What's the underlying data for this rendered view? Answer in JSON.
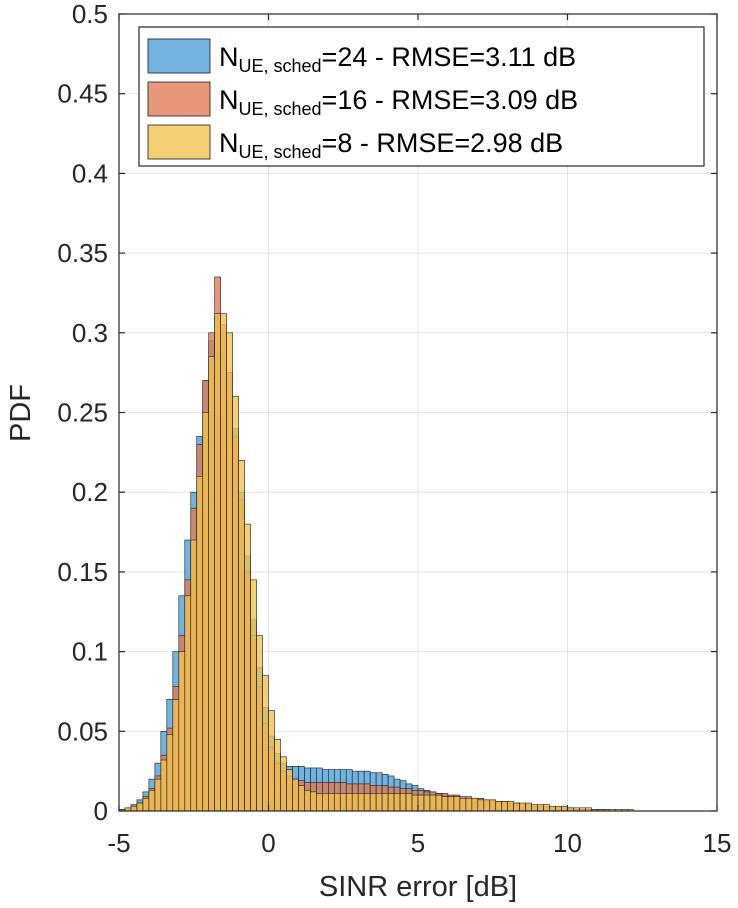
{
  "chart_data": {
    "type": "bar",
    "subtype": "overlaid-histogram",
    "title": "",
    "xlabel": "SINR error [dB]",
    "ylabel": "PDF",
    "xlim": [
      -5,
      15
    ],
    "ylim": [
      0,
      0.5
    ],
    "xticks": [
      -5,
      0,
      5,
      10,
      15
    ],
    "xtick_labels": [
      "-5",
      "0",
      "5",
      "10",
      "15"
    ],
    "yticks": [
      0,
      0.05,
      0.1,
      0.15,
      0.2,
      0.25,
      0.3,
      0.35,
      0.4,
      0.45,
      0.5
    ],
    "ytick_labels": [
      "0",
      "0.05",
      "0.1",
      "0.15",
      "0.2",
      "0.25",
      "0.3",
      "0.35",
      "0.4",
      "0.45",
      "0.5"
    ],
    "grid": true,
    "legend_position": "top-right",
    "bin_width": 0.2,
    "series": [
      {
        "name_main": "N",
        "name_sub": "UE, sched",
        "name_rest": "=24  -  RMSE=3.11  dB",
        "color": "#4a9fd6",
        "bin_start": -5.0,
        "values": [
          0.001,
          0.002,
          0.004,
          0.007,
          0.012,
          0.02,
          0.03,
          0.05,
          0.07,
          0.1,
          0.135,
          0.17,
          0.2,
          0.235,
          0.27,
          0.295,
          0.31,
          0.3,
          0.275,
          0.24,
          0.2,
          0.16,
          0.12,
          0.09,
          0.065,
          0.047,
          0.036,
          0.03,
          0.028,
          0.028,
          0.028,
          0.027,
          0.027,
          0.027,
          0.026,
          0.026,
          0.026,
          0.026,
          0.026,
          0.025,
          0.025,
          0.025,
          0.024,
          0.024,
          0.023,
          0.022,
          0.02,
          0.019,
          0.017,
          0.016,
          0.014,
          0.013,
          0.012,
          0.011,
          0.01,
          0.009,
          0.009,
          0.008,
          0.008,
          0.007,
          0.007,
          0.006,
          0.006,
          0.005,
          0.005,
          0.004,
          0.004,
          0.003,
          0.003,
          0.002,
          0.002,
          0.002,
          0.001,
          0.001,
          0.001,
          0.001,
          0.001,
          0.001,
          0.001,
          0.001,
          0.001,
          0.0,
          0.0,
          0.0,
          0.0,
          0.0,
          0.0,
          0.0,
          0.0,
          0.0,
          0.0,
          0.0,
          0.0,
          0.0,
          0.0,
          0.0,
          0.0,
          0.0,
          0.0,
          0.0
        ]
      },
      {
        "name_main": "N",
        "name_sub": "UE, sched",
        "name_rest": "=16  -  RMSE=3.09  dB",
        "color": "#e07b54",
        "bin_start": -5.0,
        "values": [
          0.001,
          0.002,
          0.003,
          0.005,
          0.009,
          0.014,
          0.022,
          0.035,
          0.052,
          0.078,
          0.11,
          0.145,
          0.19,
          0.23,
          0.27,
          0.3,
          0.335,
          0.305,
          0.275,
          0.235,
          0.195,
          0.15,
          0.11,
          0.078,
          0.055,
          0.04,
          0.03,
          0.025,
          0.022,
          0.02,
          0.019,
          0.018,
          0.018,
          0.018,
          0.018,
          0.018,
          0.018,
          0.018,
          0.017,
          0.017,
          0.017,
          0.017,
          0.016,
          0.016,
          0.016,
          0.015,
          0.015,
          0.014,
          0.014,
          0.013,
          0.013,
          0.012,
          0.012,
          0.011,
          0.011,
          0.01,
          0.01,
          0.009,
          0.009,
          0.008,
          0.008,
          0.007,
          0.007,
          0.006,
          0.006,
          0.005,
          0.005,
          0.004,
          0.004,
          0.003,
          0.003,
          0.003,
          0.002,
          0.002,
          0.002,
          0.002,
          0.001,
          0.001,
          0.001,
          0.001,
          0.001,
          0.001,
          0.0,
          0.0,
          0.0,
          0.0,
          0.0,
          0.0,
          0.0,
          0.0,
          0.0,
          0.0,
          0.0,
          0.0,
          0.0,
          0.0,
          0.0,
          0.0,
          0.0,
          0.0
        ]
      },
      {
        "name_main": "N",
        "name_sub": "UE, sched",
        "name_rest": "=8  -  RMSE=2.98  dB",
        "color": "#f2c14e",
        "bin_start": -5.0,
        "values": [
          0.001,
          0.002,
          0.003,
          0.005,
          0.008,
          0.013,
          0.02,
          0.032,
          0.048,
          0.07,
          0.1,
          0.135,
          0.17,
          0.21,
          0.25,
          0.285,
          0.312,
          0.312,
          0.3,
          0.26,
          0.22,
          0.18,
          0.145,
          0.11,
          0.085,
          0.063,
          0.045,
          0.034,
          0.026,
          0.02,
          0.016,
          0.013,
          0.012,
          0.011,
          0.011,
          0.011,
          0.011,
          0.011,
          0.011,
          0.011,
          0.011,
          0.011,
          0.011,
          0.011,
          0.011,
          0.011,
          0.011,
          0.011,
          0.011,
          0.01,
          0.01,
          0.01,
          0.01,
          0.01,
          0.009,
          0.009,
          0.009,
          0.008,
          0.008,
          0.008,
          0.007,
          0.007,
          0.007,
          0.006,
          0.006,
          0.006,
          0.005,
          0.005,
          0.005,
          0.004,
          0.004,
          0.004,
          0.003,
          0.003,
          0.003,
          0.002,
          0.002,
          0.002,
          0.002,
          0.001,
          0.001,
          0.001,
          0.001,
          0.001,
          0.001,
          0.001,
          0.0,
          0.0,
          0.0,
          0.0,
          0.0,
          0.0,
          0.0,
          0.0,
          0.0,
          0.0,
          0.0,
          0.0,
          0.0,
          0.0
        ]
      }
    ]
  }
}
